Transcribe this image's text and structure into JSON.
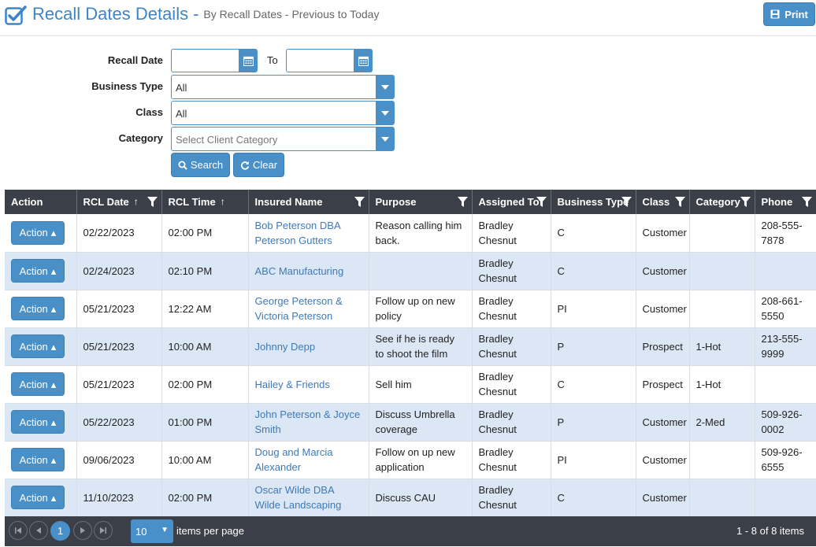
{
  "header": {
    "title": "Recall Dates Details",
    "dash": "-",
    "subtitle": "By Recall Dates - Previous to Today",
    "print_label": "Print"
  },
  "form": {
    "recall_date_label": "Recall Date",
    "recall_date_from": "",
    "to_label": "To",
    "recall_date_to": "",
    "business_type_label": "Business Type",
    "business_type_value": "All",
    "class_label": "Class",
    "class_value": "All",
    "category_label": "Category",
    "category_placeholder": "Select Client Category",
    "search_label": "Search",
    "clear_label": "Clear"
  },
  "grid": {
    "columns": [
      {
        "label": "Action",
        "sort": "",
        "filter": false
      },
      {
        "label": "RCL Date",
        "sort": "↑",
        "filter": true
      },
      {
        "label": "RCL Time",
        "sort": "↑",
        "filter": false
      },
      {
        "label": "Insured Name",
        "sort": "",
        "filter": true
      },
      {
        "label": "Purpose",
        "sort": "",
        "filter": true
      },
      {
        "label": "Assigned To",
        "sort": "",
        "filter": true
      },
      {
        "label": "Business Type",
        "sort": "",
        "filter": true
      },
      {
        "label": "Class",
        "sort": "",
        "filter": true
      },
      {
        "label": "Category",
        "sort": "",
        "filter": true
      },
      {
        "label": "Phone",
        "sort": "",
        "filter": true
      }
    ],
    "action_label": "Action",
    "rows": [
      {
        "date": "02/22/2023",
        "time": "02:00 PM",
        "name": "Bob Peterson DBA Peterson Gutters",
        "purpose": "Reason calling him back.",
        "assigned": "Bradley Chesnut",
        "btype": "C",
        "class": "Customer",
        "category": "",
        "phone": "208-555-7878"
      },
      {
        "date": "02/24/2023",
        "time": "02:10 PM",
        "name": "ABC Manufacturing",
        "purpose": "",
        "assigned": "Bradley Chesnut",
        "btype": "C",
        "class": "Customer",
        "category": "",
        "phone": ""
      },
      {
        "date": "05/21/2023",
        "time": "12:22 AM",
        "name": "George Peterson & Victoria Peterson",
        "purpose": "Follow up on new policy",
        "assigned": "Bradley Chesnut",
        "btype": "PI",
        "class": "Customer",
        "category": "",
        "phone": "208-661-5550"
      },
      {
        "date": "05/21/2023",
        "time": "10:00 AM",
        "name": "Johnny Depp",
        "purpose": "See if he is ready to shoot the film",
        "assigned": "Bradley Chesnut",
        "btype": "P",
        "class": "Prospect",
        "category": "1-Hot",
        "phone": "213-555-9999"
      },
      {
        "date": "05/21/2023",
        "time": "02:00 PM",
        "name": "Hailey & Friends",
        "purpose": "Sell him",
        "assigned": "Bradley Chesnut",
        "btype": "C",
        "class": "Prospect",
        "category": "1-Hot",
        "phone": ""
      },
      {
        "date": "05/22/2023",
        "time": "01:00 PM",
        "name": "John Peterson & Joyce Smith",
        "purpose": "Discuss Umbrella coverage",
        "assigned": "Bradley Chesnut",
        "btype": "P",
        "class": "Customer",
        "category": "2-Med",
        "phone": "509-926-0002"
      },
      {
        "date": "09/06/2023",
        "time": "10:00 AM",
        "name": "Doug and Marcia Alexander",
        "purpose": "Follow on up new application",
        "assigned": "Bradley Chesnut",
        "btype": "PI",
        "class": "Customer",
        "category": "",
        "phone": "509-926-6555"
      },
      {
        "date": "11/10/2023",
        "time": "02:00 PM",
        "name": "Oscar Wilde DBA Wilde Landscaping",
        "purpose": "Discuss CAU",
        "assigned": "Bradley Chesnut",
        "btype": "C",
        "class": "Customer",
        "category": "",
        "phone": ""
      }
    ]
  },
  "pager": {
    "current_page": "1",
    "page_size": "10",
    "items_per_page_label": "items per page",
    "info": "1 - 8 of 8 items"
  },
  "colors": {
    "accent": "#4a90c8",
    "title": "#3d85c6",
    "header_bg": "#3b3f47",
    "alt_row": "#dce7f5",
    "link": "#3d7ab8"
  }
}
